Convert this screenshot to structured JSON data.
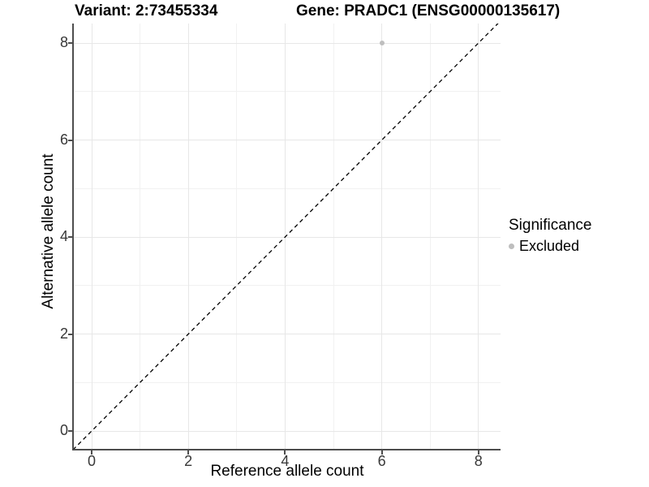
{
  "chart_data": {
    "type": "scatter",
    "titles": {
      "left": "Variant: 2:73455334",
      "right": "Gene: PRADC1 (ENSG00000135617)"
    },
    "xlabel": "Reference allele count",
    "ylabel": "Alternative allele count",
    "x_ticks": [
      0,
      2,
      4,
      6,
      8
    ],
    "y_ticks": [
      0,
      2,
      4,
      6,
      8
    ],
    "x_minor_ticks": [
      1,
      3,
      5,
      7
    ],
    "y_minor_ticks": [
      1,
      3,
      5,
      7
    ],
    "xlim": [
      -0.35,
      8.45
    ],
    "ylim": [
      -0.37,
      8.4
    ],
    "grid": true,
    "points": [
      {
        "x": 6,
        "y": 8,
        "significance": "Excluded"
      }
    ],
    "identity_line": {
      "slope": 1,
      "intercept": 0,
      "style": "dashed",
      "color": "#000000"
    },
    "legend": {
      "title": "Significance",
      "position": "right",
      "items": [
        {
          "label": "Excluded",
          "color": "#bebebe"
        }
      ]
    },
    "colors": {
      "point": "#bebebe",
      "grid_major": "#e7e7e7",
      "grid_minor": "#f1f1f1",
      "axis": "#4d4d4d",
      "background": "#ffffff"
    }
  }
}
